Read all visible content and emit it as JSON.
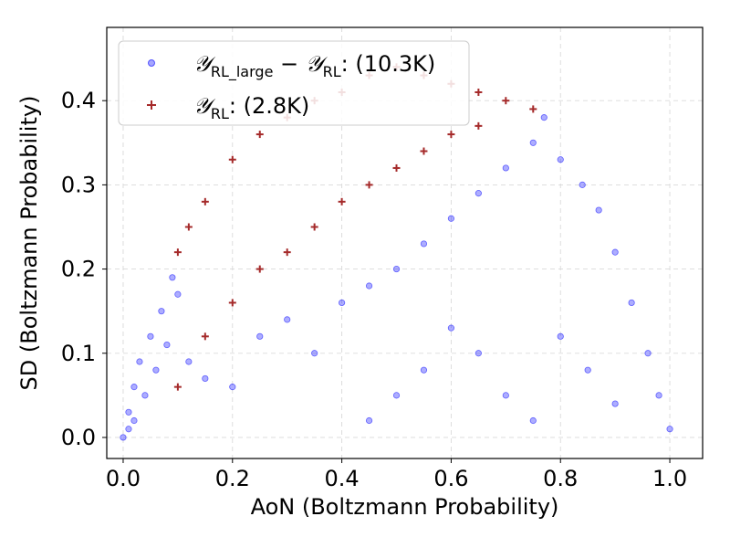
{
  "chart_data": {
    "type": "scatter",
    "title": "",
    "xlabel": "AoN (Boltzmann Probability)",
    "ylabel": "SD (Boltzmann Probability)",
    "xlim": [
      -0.03,
      1.06
    ],
    "ylim": [
      -0.025,
      0.487
    ],
    "x_ticks": [
      0.0,
      0.2,
      0.4,
      0.6,
      0.8,
      1.0
    ],
    "x_tick_labels": [
      "0.0",
      "0.2",
      "0.4",
      "0.6",
      "0.8",
      "1.0"
    ],
    "y_ticks": [
      0.0,
      0.1,
      0.2,
      0.3,
      0.4
    ],
    "y_tick_labels": [
      "0.0",
      "0.1",
      "0.2",
      "0.3",
      "0.4"
    ],
    "grid": true,
    "legend_location": "top-left",
    "series": [
      {
        "name": "Y_RL_large − Y_RL: (10.3K)",
        "legend": {
          "main1": "𝒴",
          "sub1": "RL_large",
          "minus": " − ",
          "main2": "𝒴",
          "sub2": "RL",
          "suffix": ": (10.3K)"
        },
        "marker": "circle",
        "color": "#0000ff",
        "count_label": "10.3K",
        "points": [
          [
            0.0,
            0.0
          ],
          [
            0.01,
            0.03
          ],
          [
            0.02,
            0.06
          ],
          [
            0.03,
            0.09
          ],
          [
            0.05,
            0.12
          ],
          [
            0.07,
            0.15
          ],
          [
            0.09,
            0.19
          ],
          [
            0.01,
            0.01
          ],
          [
            0.02,
            0.02
          ],
          [
            0.04,
            0.05
          ],
          [
            0.06,
            0.08
          ],
          [
            0.08,
            0.11
          ],
          [
            0.1,
            0.17
          ],
          [
            0.12,
            0.09
          ],
          [
            0.15,
            0.07
          ],
          [
            0.2,
            0.06
          ],
          [
            0.25,
            0.12
          ],
          [
            0.3,
            0.14
          ],
          [
            0.35,
            0.1
          ],
          [
            0.4,
            0.16
          ],
          [
            0.45,
            0.18
          ],
          [
            0.5,
            0.2
          ],
          [
            0.55,
            0.23
          ],
          [
            0.6,
            0.26
          ],
          [
            0.65,
            0.29
          ],
          [
            0.7,
            0.32
          ],
          [
            0.75,
            0.35
          ],
          [
            0.77,
            0.38
          ],
          [
            0.8,
            0.33
          ],
          [
            0.84,
            0.3
          ],
          [
            0.87,
            0.27
          ],
          [
            0.9,
            0.22
          ],
          [
            0.93,
            0.16
          ],
          [
            0.96,
            0.1
          ],
          [
            0.98,
            0.05
          ],
          [
            1.0,
            0.01
          ],
          [
            0.65,
            0.1
          ],
          [
            0.7,
            0.05
          ],
          [
            0.75,
            0.02
          ],
          [
            0.8,
            0.12
          ],
          [
            0.85,
            0.08
          ],
          [
            0.9,
            0.04
          ],
          [
            0.5,
            0.05
          ],
          [
            0.55,
            0.08
          ],
          [
            0.6,
            0.13
          ],
          [
            0.45,
            0.02
          ]
        ]
      },
      {
        "name": "Y_RL: (2.8K)",
        "legend": {
          "main1": "𝒴",
          "sub1": "RL",
          "suffix": ": (2.8K)"
        },
        "marker": "plus",
        "color": "#a52a2a",
        "count_label": "2.8K",
        "points": [
          [
            0.1,
            0.06
          ],
          [
            0.1,
            0.22
          ],
          [
            0.12,
            0.25
          ],
          [
            0.15,
            0.28
          ],
          [
            0.2,
            0.33
          ],
          [
            0.25,
            0.36
          ],
          [
            0.3,
            0.38
          ],
          [
            0.35,
            0.4
          ],
          [
            0.4,
            0.41
          ],
          [
            0.45,
            0.43
          ],
          [
            0.5,
            0.44
          ],
          [
            0.55,
            0.43
          ],
          [
            0.6,
            0.42
          ],
          [
            0.65,
            0.41
          ],
          [
            0.7,
            0.4
          ],
          [
            0.75,
            0.39
          ],
          [
            0.15,
            0.12
          ],
          [
            0.2,
            0.16
          ],
          [
            0.25,
            0.2
          ],
          [
            0.3,
            0.22
          ],
          [
            0.35,
            0.25
          ],
          [
            0.4,
            0.28
          ],
          [
            0.45,
            0.3
          ],
          [
            0.5,
            0.32
          ],
          [
            0.55,
            0.34
          ],
          [
            0.6,
            0.36
          ],
          [
            0.65,
            0.37
          ]
        ]
      }
    ]
  }
}
